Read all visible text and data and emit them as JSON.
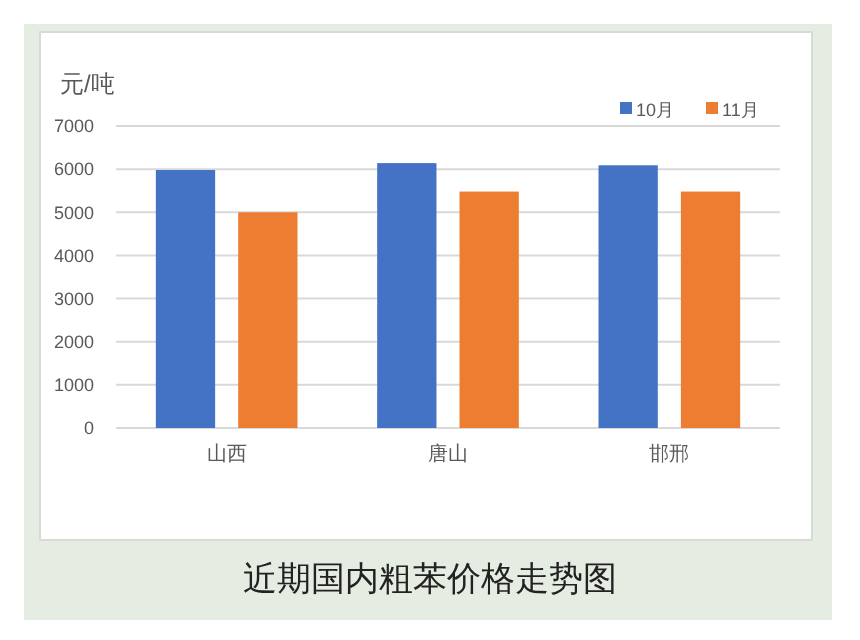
{
  "chart_data": {
    "type": "bar",
    "title": "近期国内粗苯价格走势图",
    "ylabel": "元/吨",
    "categories": [
      "山西",
      "唐山",
      "邯邢"
    ],
    "series": [
      {
        "name": "10月",
        "color": "#4472c4",
        "values": [
          5980,
          6140,
          6090
        ]
      },
      {
        "name": "11月",
        "color": "#ed7d31",
        "values": [
          5000,
          5480,
          5480
        ]
      }
    ],
    "ylim": [
      0,
      7000
    ],
    "yticks": [
      0,
      1000,
      2000,
      3000,
      4000,
      5000,
      6000,
      7000
    ],
    "grid": "y",
    "legend": "top right"
  }
}
